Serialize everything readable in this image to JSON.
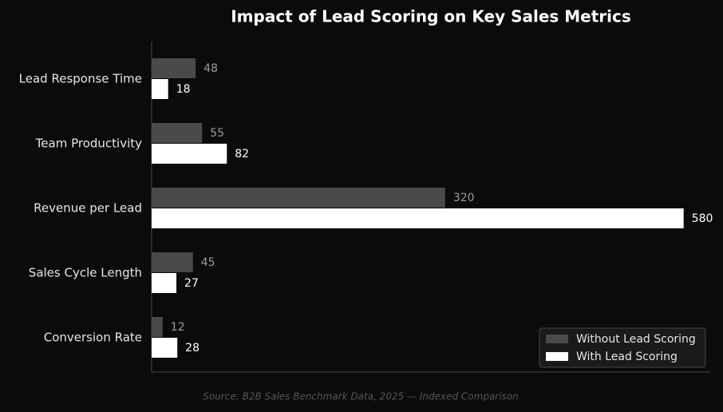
{
  "chart_data": {
    "type": "hbar",
    "title": "Impact of Lead Scoring on Key Sales Metrics",
    "source": "Source: B2B Sales Benchmark Data, 2025 — Indexed Comparison",
    "categories": [
      "Lead Response Time",
      "Team Productivity",
      "Revenue per Lead",
      "Sales Cycle Length",
      "Conversion Rate"
    ],
    "series": [
      {
        "name": "Without Lead Scoring",
        "color": "#4a4a4a",
        "label_color": "#9a9a9a",
        "values": [
          48,
          55,
          320,
          45,
          12
        ]
      },
      {
        "name": "With Lead Scoring",
        "color": "#ffffff",
        "label_color": "#ffffff",
        "values": [
          18,
          82,
          580,
          27,
          28
        ]
      }
    ],
    "xlim": [
      0,
      609
    ],
    "legend": "lower right"
  }
}
